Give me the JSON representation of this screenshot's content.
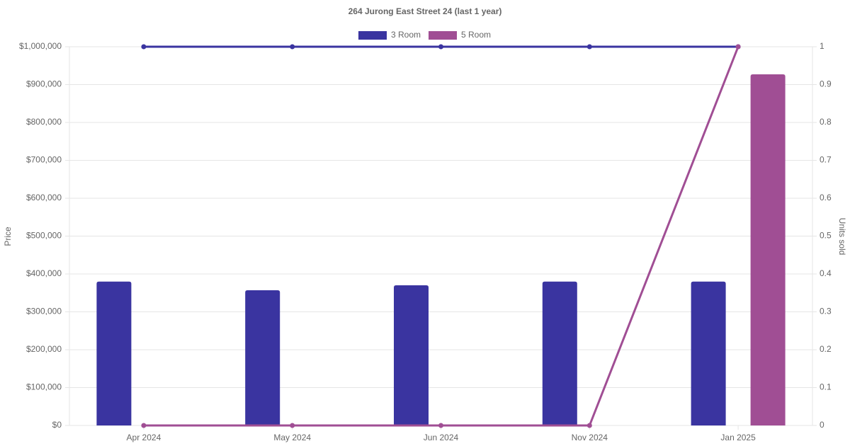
{
  "chart_data": {
    "type": "bar",
    "title": "264 Jurong East Street 24 (last 1 year)",
    "categories": [
      "Apr 2024",
      "May 2024",
      "Jun 2024",
      "Nov 2024",
      "Jan 2025"
    ],
    "series": [
      {
        "name": "3 Room",
        "color": "#3a34a0",
        "values": [
          380000,
          357000,
          370000,
          380000,
          380000
        ],
        "units_sold": [
          1,
          1,
          1,
          1,
          1
        ]
      },
      {
        "name": "5 Room",
        "color": "#a04e94",
        "values": [
          null,
          null,
          null,
          null,
          927000
        ],
        "units_sold": [
          0,
          0,
          0,
          0,
          1
        ]
      }
    ],
    "y_label": "Price",
    "y2_label": "Units sold",
    "ylim": [
      0,
      1000000
    ],
    "yticks": [
      {
        "value": 0,
        "label": "$0"
      },
      {
        "value": 100000,
        "label": "$100,000"
      },
      {
        "value": 200000,
        "label": "$200,000"
      },
      {
        "value": 300000,
        "label": "$300,000"
      },
      {
        "value": 400000,
        "label": "$400,000"
      },
      {
        "value": 500000,
        "label": "$500,000"
      },
      {
        "value": 600000,
        "label": "$600,000"
      },
      {
        "value": 700000,
        "label": "$700,000"
      },
      {
        "value": 800000,
        "label": "$800,000"
      },
      {
        "value": 900000,
        "label": "$900,000"
      },
      {
        "value": 1000000,
        "label": "$1,000,000"
      }
    ],
    "y2lim": [
      0,
      1
    ],
    "y2ticks": [
      0,
      0.1,
      0.2,
      0.3,
      0.4,
      0.5,
      0.6,
      0.7,
      0.8,
      0.9,
      1
    ],
    "grid": true
  }
}
